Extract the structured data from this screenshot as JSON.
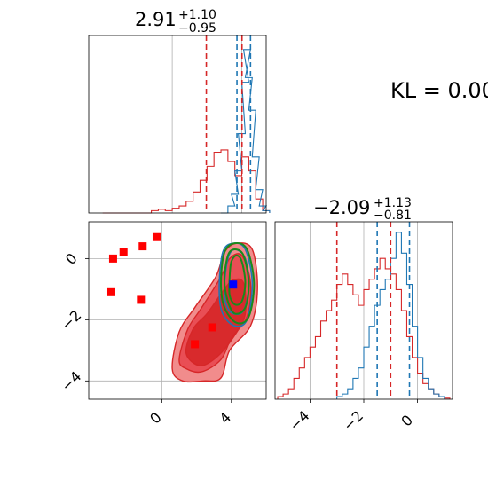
{
  "figure_text": {
    "kl_label": "KL = 0.00"
  },
  "colors": {
    "red": "#d62728",
    "red_fill_outer": "#f08080",
    "red_fill_mid": "#e8474f",
    "red_fill_inner": "#d62728",
    "blue": "#1f77b4",
    "green": "#1a8a1a",
    "grid": "#b0b0b0",
    "marker_red": "#ff0000",
    "marker_blue": "#0000ff"
  },
  "chart_data": [
    {
      "type": "histogram",
      "panel": "top-left",
      "title": {
        "main": "2.91",
        "upper": "+1.10",
        "lower": "−0.95"
      },
      "xlim": [
        -4.8,
        5.4
      ],
      "grid": true,
      "x_ticks": [
        0,
        4
      ],
      "x_tick_labels": [
        "",
        ""
      ],
      "series": [
        {
          "name": "",
          "color": "red",
          "bins": [
            [
              -4.0,
              0
            ],
            [
              -3.6,
              0
            ],
            [
              -3.2,
              0
            ],
            [
              -2.8,
              0
            ],
            [
              -2.4,
              0
            ],
            [
              -2.0,
              0
            ],
            [
              -1.6,
              0
            ],
            [
              -1.2,
              0.5
            ],
            [
              -0.8,
              0.8
            ],
            [
              -0.4,
              0.5
            ],
            [
              0.0,
              1
            ],
            [
              0.4,
              1.5
            ],
            [
              0.8,
              2.5
            ],
            [
              1.2,
              4.5
            ],
            [
              1.6,
              7
            ],
            [
              2.0,
              10
            ],
            [
              2.4,
              13
            ],
            [
              2.8,
              13.5
            ],
            [
              3.2,
              11
            ],
            [
              3.6,
              8
            ],
            [
              4.0,
              12
            ],
            [
              4.4,
              9
            ],
            [
              4.8,
              3
            ],
            [
              5.2,
              0.5
            ]
          ]
        },
        {
          "name": "",
          "color": "blue",
          "bins": [
            [
              2.8,
              0
            ],
            [
              3.2,
              1.5
            ],
            [
              3.4,
              4
            ],
            [
              3.6,
              9
            ],
            [
              3.8,
              17
            ],
            [
              4.0,
              28
            ],
            [
              4.1,
              35
            ],
            [
              4.2,
              29
            ],
            [
              4.4,
              22
            ],
            [
              4.6,
              12
            ],
            [
              4.8,
              5
            ],
            [
              5.0,
              1.5
            ],
            [
              5.2,
              0.5
            ]
          ]
        }
      ],
      "ymax": 38,
      "vlines": [
        {
          "x": 1.96,
          "color": "red"
        },
        {
          "x": 4.01,
          "color": "red"
        },
        {
          "x": 3.72,
          "color": "blue"
        },
        {
          "x": 4.5,
          "color": "blue"
        }
      ]
    },
    {
      "type": "scatter",
      "panel": "bottom-left",
      "xlim": [
        -4.2,
        6.0
      ],
      "ylim": [
        -4.6,
        1.2
      ],
      "grid": true,
      "x_ticks": [
        0,
        4
      ],
      "x_tick_labels": [
        "0",
        "4"
      ],
      "y_ticks": [
        0,
        -2,
        -4
      ],
      "y_tick_labels": [
        "0",
        "−2",
        "−4"
      ],
      "red_markers": [
        [
          -2.9,
          -1.1
        ],
        [
          -2.8,
          0.0
        ],
        [
          -2.2,
          0.2
        ],
        [
          -1.1,
          0.4
        ],
        [
          -0.3,
          0.7
        ],
        [
          -1.2,
          -1.35
        ],
        [
          1.9,
          -2.8
        ],
        [
          2.9,
          -2.25
        ]
      ],
      "blue_marker": [
        4.1,
        -0.85
      ],
      "red_contours": [
        [
          [
            0.6,
            -3.6
          ],
          [
            1.0,
            -2.4
          ],
          [
            1.9,
            -1.6
          ],
          [
            3.1,
            -0.6
          ],
          [
            3.6,
            0.2
          ],
          [
            4.3,
            0.5
          ],
          [
            5.2,
            0.3
          ],
          [
            5.5,
            -1.0
          ],
          [
            5.1,
            -2.2
          ],
          [
            3.9,
            -3.0
          ],
          [
            3.4,
            -3.9
          ],
          [
            2.4,
            -4.0
          ],
          [
            1.2,
            -4.0
          ]
        ],
        [
          [
            1.0,
            -3.3
          ],
          [
            1.5,
            -2.3
          ],
          [
            2.3,
            -1.6
          ],
          [
            3.4,
            -0.6
          ],
          [
            3.9,
            0.0
          ],
          [
            4.6,
            0.1
          ],
          [
            5.1,
            -0.8
          ],
          [
            4.9,
            -1.9
          ],
          [
            4.0,
            -2.6
          ],
          [
            3.4,
            -3.3
          ],
          [
            2.3,
            -3.7
          ],
          [
            1.4,
            -3.6
          ]
        ],
        [
          [
            1.4,
            -3.1
          ],
          [
            1.8,
            -2.3
          ],
          [
            2.6,
            -1.8
          ],
          [
            3.6,
            -1.0
          ],
          [
            4.1,
            -0.7
          ],
          [
            4.7,
            -0.8
          ],
          [
            4.8,
            -1.8
          ],
          [
            4.2,
            -2.5
          ],
          [
            3.2,
            -3.2
          ],
          [
            2.2,
            -3.5
          ]
        ]
      ],
      "blue_contours": [
        [
          [
            3.3,
            -1.0
          ],
          [
            3.5,
            0.2
          ],
          [
            4.1,
            0.5
          ],
          [
            4.8,
            0.3
          ],
          [
            5.2,
            -0.8
          ],
          [
            4.9,
            -2.0
          ],
          [
            4.2,
            -2.2
          ],
          [
            3.5,
            -1.8
          ]
        ],
        [
          [
            3.6,
            -0.9
          ],
          [
            3.8,
            0.0
          ],
          [
            4.2,
            0.3
          ],
          [
            4.8,
            0.0
          ],
          [
            5.0,
            -0.9
          ],
          [
            4.7,
            -1.7
          ],
          [
            4.1,
            -1.8
          ],
          [
            3.7,
            -1.5
          ]
        ]
      ],
      "green_contours": [
        [
          [
            3.4,
            -0.8
          ],
          [
            3.6,
            0.2
          ],
          [
            4.2,
            0.5
          ],
          [
            4.9,
            0.3
          ],
          [
            5.3,
            -0.8
          ],
          [
            5.0,
            -1.9
          ],
          [
            4.3,
            -2.1
          ],
          [
            3.6,
            -1.6
          ]
        ],
        [
          [
            3.6,
            -0.7
          ],
          [
            3.8,
            0.1
          ],
          [
            4.2,
            0.3
          ],
          [
            4.7,
            0.1
          ],
          [
            5.0,
            -0.8
          ],
          [
            4.8,
            -1.6
          ],
          [
            4.2,
            -1.8
          ],
          [
            3.8,
            -1.4
          ]
        ],
        [
          [
            3.9,
            -0.6
          ],
          [
            4.0,
            -0.1
          ],
          [
            4.3,
            0.1
          ],
          [
            4.6,
            -0.1
          ],
          [
            4.8,
            -0.8
          ],
          [
            4.6,
            -1.4
          ],
          [
            4.2,
            -1.5
          ],
          [
            3.9,
            -1.2
          ]
        ]
      ]
    },
    {
      "type": "histogram",
      "panel": "bottom-right",
      "title": {
        "main": "−2.09",
        "upper": "+1.13",
        "lower": "−0.81"
      },
      "xlim": [
        -5.3,
        1.3
      ],
      "grid": true,
      "x_ticks": [
        -4,
        -2,
        0
      ],
      "x_tick_labels": [
        "−4",
        "−2",
        "0"
      ],
      "series": [
        {
          "name": "",
          "color": "red",
          "bins": [
            [
              -5.2,
              0.5
            ],
            [
              -5.0,
              1
            ],
            [
              -4.8,
              2
            ],
            [
              -4.6,
              4
            ],
            [
              -4.4,
              6
            ],
            [
              -4.2,
              8
            ],
            [
              -4.0,
              10
            ],
            [
              -3.8,
              12
            ],
            [
              -3.6,
              15
            ],
            [
              -3.4,
              17
            ],
            [
              -3.2,
              19
            ],
            [
              -3.0,
              22
            ],
            [
              -2.8,
              24
            ],
            [
              -2.6,
              22
            ],
            [
              -2.4,
              20
            ],
            [
              -2.2,
              18
            ],
            [
              -2.0,
              21
            ],
            [
              -1.8,
              23
            ],
            [
              -1.6,
              25
            ],
            [
              -1.4,
              27
            ],
            [
              -1.2,
              25
            ],
            [
              -1.0,
              24
            ],
            [
              -0.8,
              21
            ],
            [
              -0.6,
              17
            ],
            [
              -0.4,
              12
            ],
            [
              -0.2,
              8
            ],
            [
              0.0,
              5
            ],
            [
              0.2,
              3
            ],
            [
              0.4,
              2
            ],
            [
              0.6,
              1
            ],
            [
              0.8,
              0.5
            ],
            [
              1.0,
              0.2
            ]
          ]
        },
        {
          "name": "",
          "color": "blue",
          "bins": [
            [
              -3.0,
              0.5
            ],
            [
              -2.8,
              1
            ],
            [
              -2.6,
              2
            ],
            [
              -2.4,
              4
            ],
            [
              -2.2,
              6
            ],
            [
              -2.0,
              10
            ],
            [
              -1.8,
              14
            ],
            [
              -1.6,
              18
            ],
            [
              -1.4,
              21
            ],
            [
              -1.2,
              23
            ],
            [
              -1.0,
              27
            ],
            [
              -0.8,
              32
            ],
            [
              -0.6,
              28
            ],
            [
              -0.4,
              22
            ],
            [
              -0.2,
              14
            ],
            [
              0.0,
              8
            ],
            [
              0.2,
              4
            ],
            [
              0.4,
              2
            ],
            [
              0.6,
              1
            ],
            [
              0.8,
              0.5
            ]
          ]
        }
      ],
      "ymax": 34,
      "vlines": [
        {
          "x": -3.0,
          "color": "red"
        },
        {
          "x": -1.0,
          "color": "red"
        },
        {
          "x": -1.5,
          "color": "blue"
        },
        {
          "x": -0.3,
          "color": "blue"
        }
      ]
    }
  ]
}
